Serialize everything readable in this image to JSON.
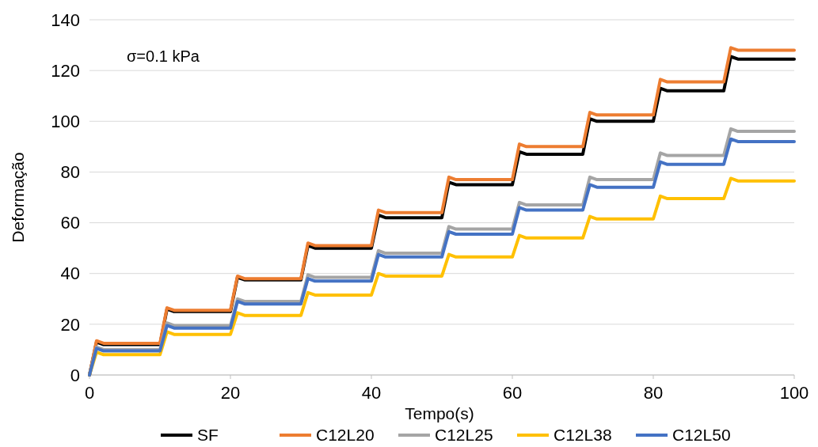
{
  "chart_data": {
    "type": "line",
    "xlabel": "Tempo(s)",
    "ylabel": "Deformação",
    "annotations": [
      "σ=0.1 kPa"
    ],
    "x": [
      0,
      1,
      2,
      10,
      11,
      12,
      20,
      21,
      22,
      30,
      31,
      32,
      40,
      41,
      42,
      50,
      51,
      52,
      60,
      61,
      62,
      70,
      71,
      72,
      80,
      81,
      82,
      90,
      91,
      92,
      100
    ],
    "series": [
      {
        "name": "SF",
        "color": "#000000",
        "values": [
          0,
          13,
          12,
          12,
          26,
          25,
          25,
          38.5,
          37.5,
          37.5,
          51,
          50,
          50,
          63,
          62,
          62,
          76,
          75,
          75,
          88,
          87,
          87,
          101,
          100,
          100,
          113,
          112,
          112,
          125.5,
          124.5,
          124.5
        ]
      },
      {
        "name": "C12L20",
        "color": "#ed7d31",
        "values": [
          0,
          13.5,
          12.5,
          12.5,
          26.5,
          25.5,
          25.5,
          39,
          38,
          38,
          52,
          51,
          51,
          65,
          64,
          64,
          78,
          77,
          77,
          91,
          90,
          90,
          103.5,
          102.5,
          102.5,
          116.5,
          115.5,
          115.5,
          129,
          128,
          128
        ]
      },
      {
        "name": "C12L25",
        "color": "#a5a5a5",
        "values": [
          0,
          11,
          10,
          10,
          20.5,
          19.5,
          19.5,
          30,
          29,
          29,
          39.5,
          38.5,
          38.5,
          49,
          48,
          48,
          58.5,
          57.5,
          57.5,
          68,
          67,
          67,
          78,
          77,
          77,
          87.5,
          86.5,
          86.5,
          97,
          96,
          96
        ]
      },
      {
        "name": "C12L38",
        "color": "#ffc000",
        "values": [
          0,
          9,
          8,
          8,
          17,
          16,
          16,
          24.5,
          23.5,
          23.5,
          32.5,
          31.5,
          31.5,
          40,
          39,
          39,
          47.5,
          46.5,
          46.5,
          55,
          54,
          54,
          62.5,
          61.5,
          61.5,
          70.5,
          69.5,
          69.5,
          77.5,
          76.5,
          76.5
        ]
      },
      {
        "name": "C12L50",
        "color": "#4472c4",
        "values": [
          0,
          10.5,
          9.5,
          9.5,
          19.5,
          18.5,
          18.5,
          29,
          28,
          28,
          38,
          37,
          37,
          47.5,
          46.5,
          46.5,
          56.5,
          55.5,
          55.5,
          66,
          65,
          65,
          75,
          74,
          74,
          84,
          83,
          83,
          93,
          92,
          92
        ]
      }
    ],
    "xlim": [
      0,
      100
    ],
    "xticks": [
      0,
      20,
      40,
      60,
      80,
      100
    ],
    "ylim": [
      0,
      140
    ],
    "yticks": [
      0,
      20,
      40,
      60,
      80,
      100,
      120,
      140
    ],
    "grid": "y",
    "legend": "bottom",
    "marker": "none",
    "line_style": "solid"
  }
}
